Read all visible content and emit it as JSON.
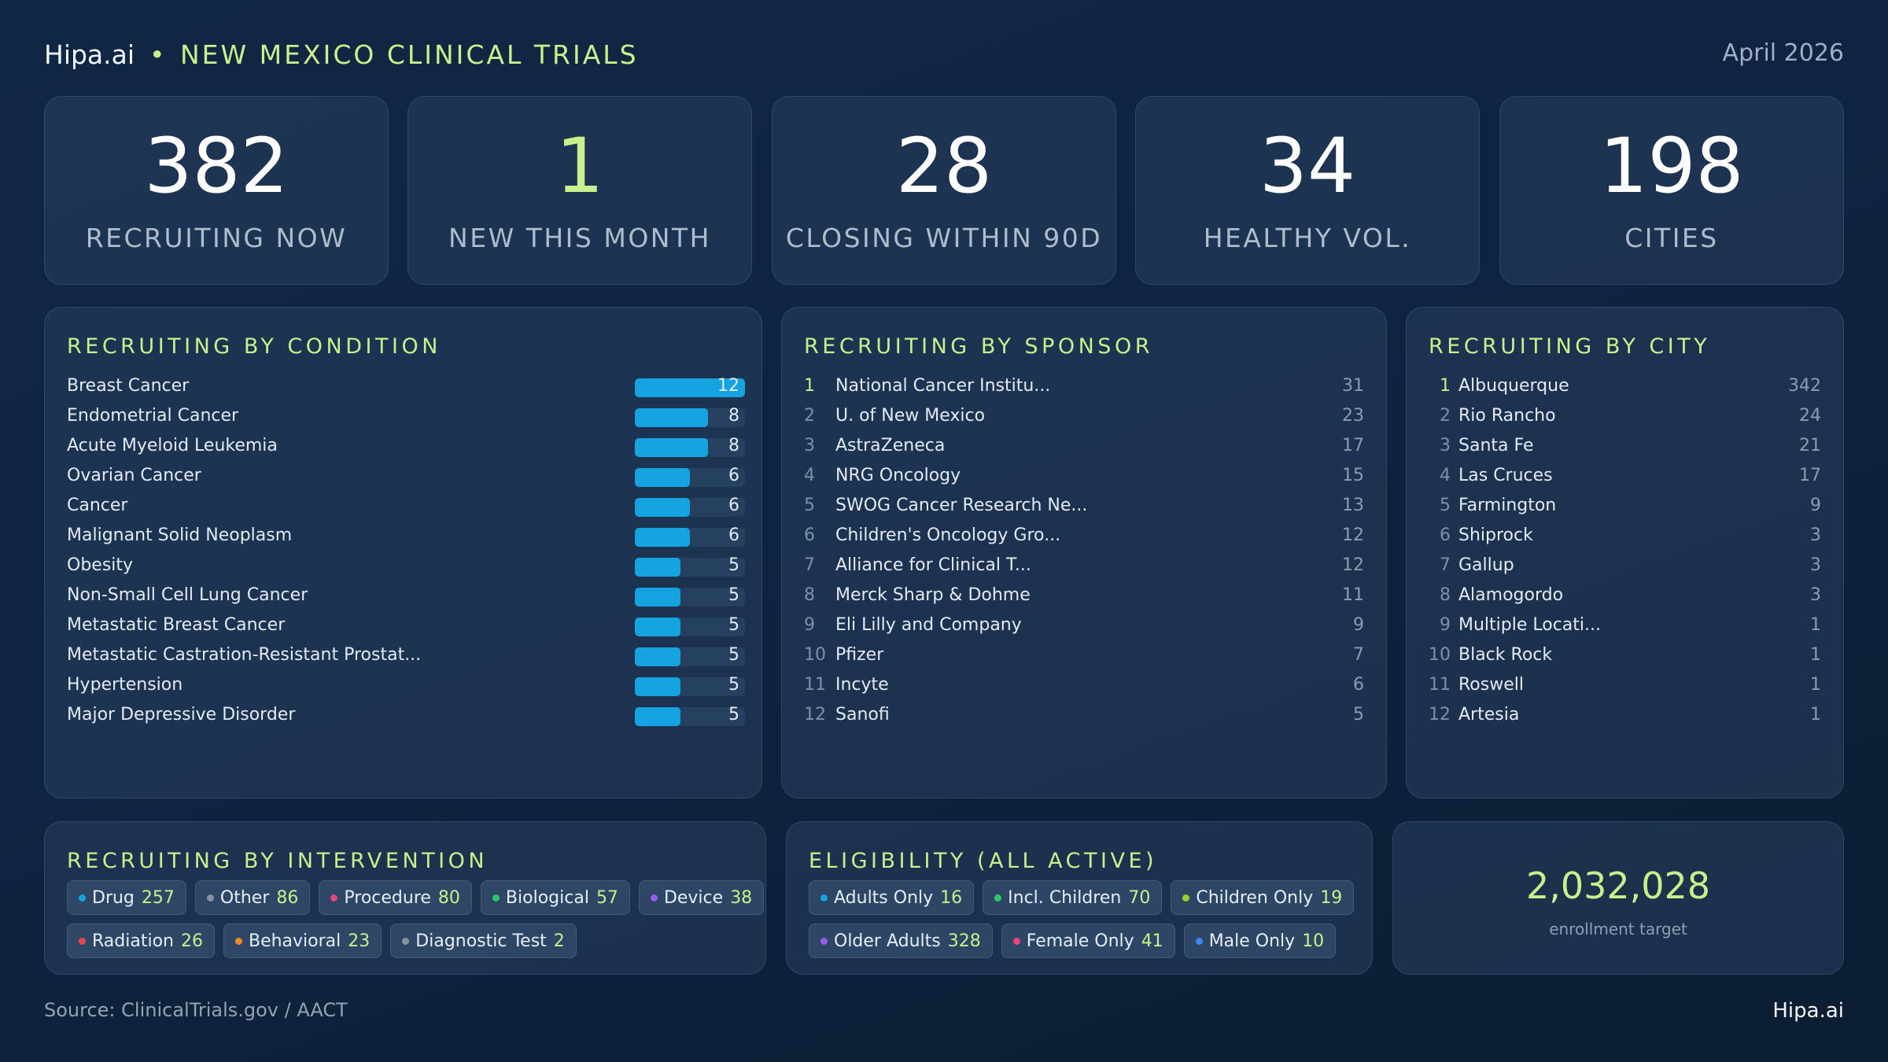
{
  "header": {
    "brand": "Hipa.ai",
    "separator": "•",
    "title": "NEW MEXICO CLINICAL TRIALS",
    "date": "April 2026"
  },
  "kpis": [
    {
      "value": "382",
      "label": "RECRUITING NOW"
    },
    {
      "value": "1",
      "label": "NEW THIS MONTH"
    },
    {
      "value": "28",
      "label": "CLOSING WITHIN 90D"
    },
    {
      "value": "34",
      "label": "HEALTHY VOL."
    },
    {
      "value": "198",
      "label": "CITIES"
    }
  ],
  "by_condition": {
    "title": "RECRUITING BY CONDITION",
    "items": [
      {
        "name": "Breast Cancer",
        "value": "12",
        "fraction": 1.0
      },
      {
        "name": "Endometrial Cancer",
        "value": "8",
        "fraction": 0.667
      },
      {
        "name": "Acute Myeloid Leukemia",
        "value": "8",
        "fraction": 0.667
      },
      {
        "name": "Ovarian Cancer",
        "value": "6",
        "fraction": 0.5
      },
      {
        "name": "Cancer",
        "value": "6",
        "fraction": 0.5
      },
      {
        "name": "Malignant Solid Neoplasm",
        "value": "6",
        "fraction": 0.5
      },
      {
        "name": "Obesity",
        "value": "5",
        "fraction": 0.417
      },
      {
        "name": "Non-Small Cell Lung Cancer",
        "value": "5",
        "fraction": 0.417
      },
      {
        "name": "Metastatic Breast Cancer",
        "value": "5",
        "fraction": 0.417
      },
      {
        "name": "Metastatic Castration-Resistant Prostat...",
        "value": "5",
        "fraction": 0.417
      },
      {
        "name": "Hypertension",
        "value": "5",
        "fraction": 0.417
      },
      {
        "name": "Major Depressive Disorder",
        "value": "5",
        "fraction": 0.417
      }
    ]
  },
  "by_sponsor": {
    "title": "RECRUITING BY SPONSOR",
    "items": [
      {
        "rank": "1",
        "name": "National Cancer Institu...",
        "value": "31"
      },
      {
        "rank": "2",
        "name": "U. of New Mexico",
        "value": "23"
      },
      {
        "rank": "3",
        "name": "AstraZeneca",
        "value": "17"
      },
      {
        "rank": "4",
        "name": "NRG Oncology",
        "value": "15"
      },
      {
        "rank": "5",
        "name": "SWOG Cancer Research Ne...",
        "value": "13"
      },
      {
        "rank": "6",
        "name": "Children's Oncology Gro...",
        "value": "12"
      },
      {
        "rank": "7",
        "name": "Alliance for Clinical T...",
        "value": "12"
      },
      {
        "rank": "8",
        "name": "Merck Sharp & Dohme",
        "value": "11"
      },
      {
        "rank": "9",
        "name": "Eli Lilly and Company",
        "value": "9"
      },
      {
        "rank": "10",
        "name": "Pfizer",
        "value": "7"
      },
      {
        "rank": "11",
        "name": "Incyte",
        "value": "6"
      },
      {
        "rank": "12",
        "name": "Sanofi",
        "value": "5"
      }
    ]
  },
  "by_city": {
    "title": "RECRUITING BY CITY",
    "items": [
      {
        "rank": "1",
        "name": "Albuquerque",
        "value": "342"
      },
      {
        "rank": "2",
        "name": "Rio Rancho",
        "value": "24"
      },
      {
        "rank": "3",
        "name": "Santa Fe",
        "value": "21"
      },
      {
        "rank": "4",
        "name": "Las Cruces",
        "value": "17"
      },
      {
        "rank": "5",
        "name": "Farmington",
        "value": "9"
      },
      {
        "rank": "6",
        "name": "Shiprock",
        "value": "3"
      },
      {
        "rank": "7",
        "name": "Gallup",
        "value": "3"
      },
      {
        "rank": "8",
        "name": "Alamogordo",
        "value": "3"
      },
      {
        "rank": "9",
        "name": "Multiple Locati...",
        "value": "1"
      },
      {
        "rank": "10",
        "name": "Black Rock",
        "value": "1"
      },
      {
        "rank": "11",
        "name": "Roswell",
        "value": "1"
      },
      {
        "rank": "12",
        "name": "Artesia",
        "value": "1"
      }
    ]
  },
  "by_intervention": {
    "title": "RECRUITING BY INTERVENTION",
    "rows": [
      [
        {
          "label": "Drug",
          "count": "257",
          "color": "#16a3e2"
        },
        {
          "label": "Other",
          "count": "86",
          "color": "#8593a3"
        },
        {
          "label": "Procedure",
          "count": "80",
          "color": "#e8447f"
        },
        {
          "label": "Biological",
          "count": "57",
          "color": "#2fc46b"
        },
        {
          "label": "Device",
          "count": "38",
          "color": "#9a5ce6"
        }
      ],
      [
        {
          "label": "Radiation",
          "count": "26",
          "color": "#e8474a"
        },
        {
          "label": "Behavioral",
          "count": "23",
          "color": "#f08a24"
        },
        {
          "label": "Diagnostic Test",
          "count": "2",
          "color": "#8593a3"
        }
      ]
    ]
  },
  "eligibility": {
    "title": "ELIGIBILITY (ALL ACTIVE)",
    "rows": [
      [
        {
          "label": "Adults Only",
          "count": "16",
          "color": "#16a3e2"
        },
        {
          "label": "Incl. Children",
          "count": "70",
          "color": "#2fc46b"
        },
        {
          "label": "Children Only",
          "count": "19",
          "color": "#9ad12a"
        }
      ],
      [
        {
          "label": "Older Adults",
          "count": "328",
          "color": "#9a5ce6"
        },
        {
          "label": "Female Only",
          "count": "41",
          "color": "#e8447f"
        },
        {
          "label": "Male Only",
          "count": "10",
          "color": "#3d86f0"
        }
      ]
    ]
  },
  "enrollment": {
    "value": "2,032,028",
    "label": "enrollment target"
  },
  "footer": {
    "source": "Source: ClinicalTrials.gov / AACT",
    "brand": "Hipa.ai"
  }
}
